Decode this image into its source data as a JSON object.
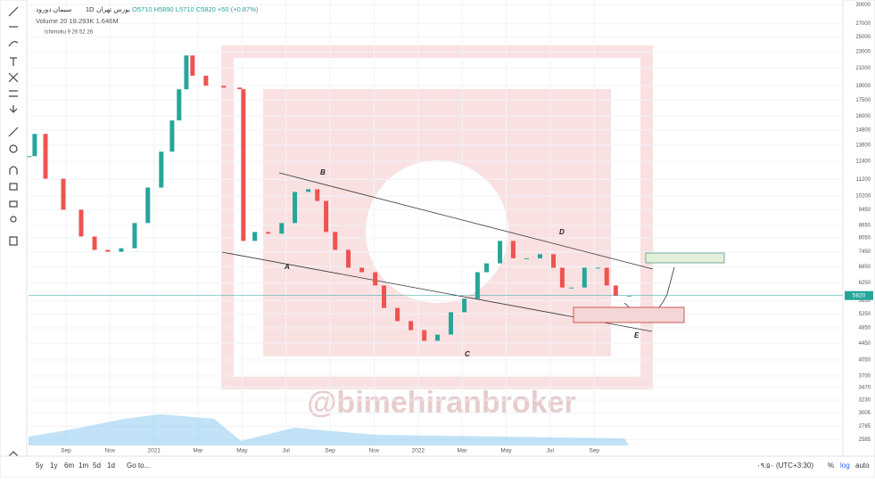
{
  "header": {
    "symbol": "سیمان دورود",
    "exchange": "بورس تهران",
    "interval": "1D",
    "ohlc": "O5710 H5890 L5710 C5820 +50 (+0.87%)",
    "volume": "Volume 20 18.293K 1.646M",
    "ichimoku": "Ichimoku 9 26 52 26"
  },
  "chart_data": {
    "type": "candlestick",
    "log": true,
    "grid": true,
    "up_color": "#26a69a",
    "down_color": "#ef5350",
    "x": [
      -1.66,
      -1.42,
      -0.93,
      -0.12,
      0.69,
      1.3,
      1.9,
      2.51,
      3.12,
      3.72,
      4.33,
      4.82,
      5.14,
      5.47,
      5.75,
      6.36,
      7.17,
      7.89,
      8.06,
      8.58,
      9.19,
      9.8,
      10.4,
      11.01,
      11.42,
      11.82,
      12.23,
      12.83,
      13.44,
      14.05,
      14.45,
      15.06,
      15.67,
      16.28,
      16.88,
      17.49,
      18.1,
      18.7,
      19.11,
      19.72,
      20.32,
      20.93,
      21.54,
      22.15,
      22.55,
      22.96,
      23.56,
      24.17,
      24.57,
      24.98,
      25.59
    ],
    "values": [
      12770,
      14480,
      11250,
      9440,
      8120,
      7530,
      7450,
      7600,
      8760,
      10700,
      13100,
      15620,
      18620,
      22530,
      20100,
      19000,
      18800,
      18620,
      7920,
      8330,
      8250,
      8760,
      10440,
      10600,
      9920,
      8330,
      7530,
      6810,
      6640,
      6160,
      5430,
      5040,
      4790,
      4510,
      4670,
      5300,
      5720,
      6640,
      6980,
      7920,
      7180,
      7180,
      7350,
      6810,
      6090,
      6090,
      6810,
      6810,
      6160,
      5820,
      5820
    ],
    "xlim": [
      -1.7,
      35.3
    ],
    "xticks": [
      {
        "value": 0,
        "label": "Sep"
      },
      {
        "value": 2,
        "label": "Nov"
      },
      {
        "value": 4,
        "label": "2021"
      },
      {
        "value": 6,
        "label": "Mar"
      },
      {
        "value": 8,
        "label": "May"
      },
      {
        "value": 10,
        "label": "Jul"
      },
      {
        "value": 12,
        "label": "Sep"
      },
      {
        "value": 14,
        "label": "Nov"
      },
      {
        "value": 16,
        "label": "2022"
      },
      {
        "value": 18,
        "label": "Mar"
      },
      {
        "value": 20,
        "label": "May"
      },
      {
        "value": 22,
        "label": "Jul"
      },
      {
        "value": 24,
        "label": "Sep"
      }
    ],
    "ylim": [
      2500,
      30800
    ],
    "yticks": [
      30000,
      27000,
      25000,
      23000,
      21000,
      19000,
      17500,
      16000,
      14800,
      13600,
      12400,
      11200,
      10200,
      9450,
      8650,
      8050,
      7450,
      6850,
      6250,
      5650,
      5250,
      4850,
      4450,
      4050,
      3700,
      3470,
      3230,
      3005,
      2785,
      2585
    ],
    "annotations": [
      "A",
      "B",
      "C",
      "D",
      "E"
    ]
  },
  "watermark": "@bimehiranbroker",
  "toolbar": {
    "ranges": [
      "5y",
      "1y",
      "6m",
      "1m",
      "5d",
      "1d"
    ],
    "goto": "Go to...",
    "time": "۰۹:۵۰ (UTC+3:30)",
    "percent": "%",
    "log": "log",
    "auto": "auto"
  }
}
